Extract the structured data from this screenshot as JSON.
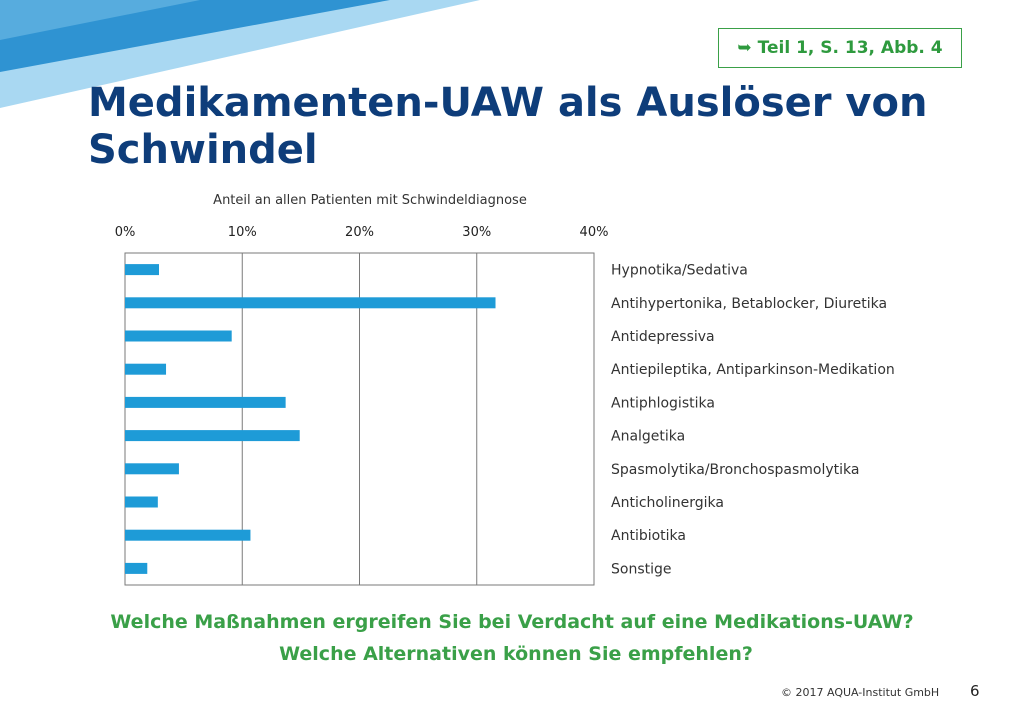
{
  "slide": {
    "title": "Medikamenten-UAW als Auslöser von Schwindel",
    "reference": "Teil 1, S. 13, Abb. 4",
    "reference_icon": "arrow-right-hook-icon",
    "question_1": "Welche Maßnahmen ergreifen Sie bei Verdacht auf eine Medikations-UAW?",
    "question_2": "Welche Alternativen können Sie empfehlen?",
    "copyright": "© 2017 AQUA-Institut GmbH",
    "page_number": "6"
  },
  "colors": {
    "title": "#0e3d7a",
    "accent_green": "#3aa048",
    "bar": "#1e9bd7",
    "decor_light": "#9fd3ef",
    "decor_dark": "#2c8fcf"
  },
  "chart_data": {
    "type": "bar",
    "orientation": "horizontal",
    "title": "Anteil an allen Patienten mit Schwindeldiagnose",
    "xlim": [
      0,
      40
    ],
    "xticks": [
      "0%",
      "10%",
      "20%",
      "30%",
      "40%"
    ],
    "tick_axis": "top",
    "category_labels": "right",
    "grid": true,
    "categories": [
      "Hypnotika/Sedativa",
      "Antihypertonika, Betablocker, Diuretika",
      "Antidepressiva",
      "Antiepileptika, Antiparkinson-Medikation",
      "Antiphlogistika",
      "Analgetika",
      "Spasmolytika/Bronchospasmolytika",
      "Anticholinergika",
      "Antibiotika",
      "Sonstige"
    ],
    "values": [
      2.9,
      31.6,
      9.1,
      3.5,
      13.7,
      14.9,
      4.6,
      2.8,
      10.7,
      1.9
    ]
  }
}
